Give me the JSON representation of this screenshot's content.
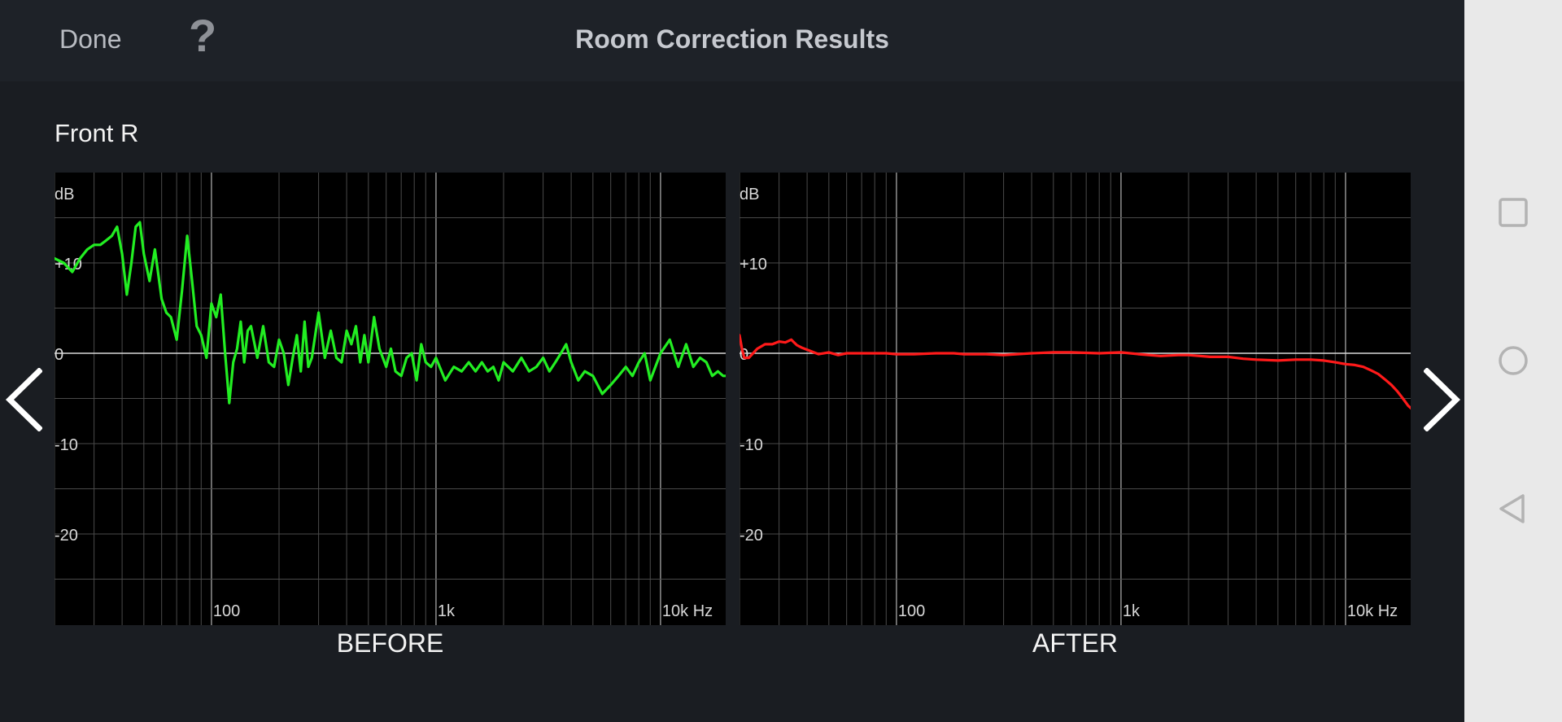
{
  "header": {
    "done_label": "Done",
    "help_label": "?",
    "title": "Room Correction Results"
  },
  "speaker_label": "Front R",
  "navigation": {
    "prev_icon": "chevron-left-icon",
    "next_icon": "chevron-right-icon"
  },
  "system_nav": {
    "recents_icon": "square-icon",
    "home_icon": "circle-icon",
    "back_icon": "triangle-back-icon"
  },
  "colors": {
    "before_line": "#22ee22",
    "after_line": "#ff1a1a",
    "background": "#1a1d22"
  },
  "chart_data": [
    {
      "type": "line",
      "caption": "BEFORE",
      "ylabel": "dB",
      "x_scale": "log",
      "xlim": [
        20,
        20000
      ],
      "ylim": [
        -30,
        20
      ],
      "x_tick_labels": [
        "100",
        "1k",
        "10k Hz"
      ],
      "y_tick_labels": [
        "+10",
        "0",
        "-10",
        "-20"
      ],
      "grid": true,
      "series": [
        {
          "x": [
            20,
            22,
            24,
            26,
            28,
            30,
            32,
            34,
            36,
            38,
            40,
            42,
            44,
            46,
            48,
            50,
            53,
            56,
            60,
            63,
            66,
            70,
            74,
            78,
            82,
            86,
            90,
            95,
            100,
            105,
            110,
            115,
            120,
            125,
            130,
            135,
            140,
            145,
            150,
            160,
            170,
            180,
            190,
            200,
            210,
            220,
            230,
            240,
            250,
            260,
            270,
            280,
            300,
            320,
            340,
            360,
            380,
            400,
            420,
            440,
            460,
            480,
            500,
            530,
            560,
            600,
            630,
            660,
            700,
            740,
            780,
            820,
            860,
            900,
            950,
            1000,
            1100,
            1200,
            1300,
            1400,
            1500,
            1600,
            1700,
            1800,
            1900,
            2000,
            2200,
            2400,
            2600,
            2800,
            3000,
            3200,
            3400,
            3600,
            3800,
            4000,
            4300,
            4600,
            5000,
            5500,
            6000,
            6500,
            7000,
            7500,
            8000,
            8500,
            9000,
            10000,
            11000,
            12000,
            13000,
            14000,
            15000,
            16000,
            17000,
            18000,
            19000,
            20000
          ],
          "y": [
            10.5,
            10,
            9,
            10.5,
            11.5,
            12,
            12,
            12.5,
            13,
            14,
            11,
            6.5,
            10,
            14,
            14.5,
            11,
            8,
            11.5,
            6,
            4.5,
            4,
            1.5,
            7,
            13,
            8,
            3,
            2,
            -0.5,
            5.5,
            4,
            6.5,
            0,
            -5.5,
            -1,
            0.5,
            3.5,
            -1,
            2.5,
            3,
            -0.5,
            3,
            -1,
            -1.5,
            1.5,
            0,
            -3.5,
            -0.5,
            2,
            -2,
            3.5,
            -1.5,
            -0.5,
            4.5,
            -0.5,
            2.5,
            -0.5,
            -1,
            2.5,
            1,
            3,
            -1,
            2,
            -1,
            4,
            0.5,
            -1.5,
            0.5,
            -2,
            -2.5,
            -0.5,
            0,
            -3,
            1,
            -1,
            -1.5,
            -0.5,
            -3,
            -1.5,
            -2,
            -1,
            -2,
            -1,
            -2,
            -1.5,
            -3,
            -1,
            -2,
            -0.5,
            -2,
            -1.5,
            -0.5,
            -2,
            -1,
            0,
            1,
            -1,
            -3,
            -2,
            -2.5,
            -4.5,
            -3.5,
            -2.5,
            -1.5,
            -2.5,
            -1,
            0,
            -3,
            0,
            1.5,
            -1.5,
            1,
            -1.5,
            -0.5,
            -1,
            -2.5,
            -2,
            -2.5,
            -2.5
          ]
        }
      ]
    },
    {
      "type": "line",
      "caption": "AFTER",
      "ylabel": "dB",
      "x_scale": "log",
      "xlim": [
        20,
        20000
      ],
      "ylim": [
        -30,
        20
      ],
      "x_tick_labels": [
        "100",
        "1k",
        "10k Hz"
      ],
      "y_tick_labels": [
        "+10",
        "0",
        "-10",
        "-20"
      ],
      "grid": true,
      "series": [
        {
          "x": [
            20,
            20.5,
            21,
            22,
            24,
            26,
            28,
            30,
            32,
            34,
            36,
            38,
            40,
            45,
            50,
            55,
            60,
            70,
            80,
            90,
            100,
            120,
            150,
            180,
            200,
            250,
            300,
            400,
            500,
            600,
            800,
            1000,
            1200,
            1500,
            1800,
            2000,
            2500,
            3000,
            3500,
            4000,
            5000,
            6000,
            7000,
            8000,
            9000,
            10000,
            11000,
            12000,
            13000,
            14000,
            15000,
            16000,
            17000,
            18000,
            19000,
            20000
          ],
          "y": [
            2,
            0.5,
            -0.5,
            -0.5,
            0.5,
            1,
            1,
            1.3,
            1.2,
            1.5,
            0.9,
            0.6,
            0.4,
            -0.1,
            0.1,
            -0.2,
            0,
            0,
            0,
            0,
            -0.1,
            -0.1,
            0,
            0,
            -0.1,
            -0.1,
            -0.2,
            0,
            0.1,
            0.1,
            0,
            0.1,
            -0.1,
            -0.3,
            -0.2,
            -0.2,
            -0.4,
            -0.4,
            -0.6,
            -0.7,
            -0.8,
            -0.7,
            -0.7,
            -0.8,
            -1,
            -1.2,
            -1.3,
            -1.5,
            -1.9,
            -2.3,
            -2.9,
            -3.5,
            -4.2,
            -5.0,
            -5.8,
            -6.3
          ]
        }
      ]
    }
  ]
}
